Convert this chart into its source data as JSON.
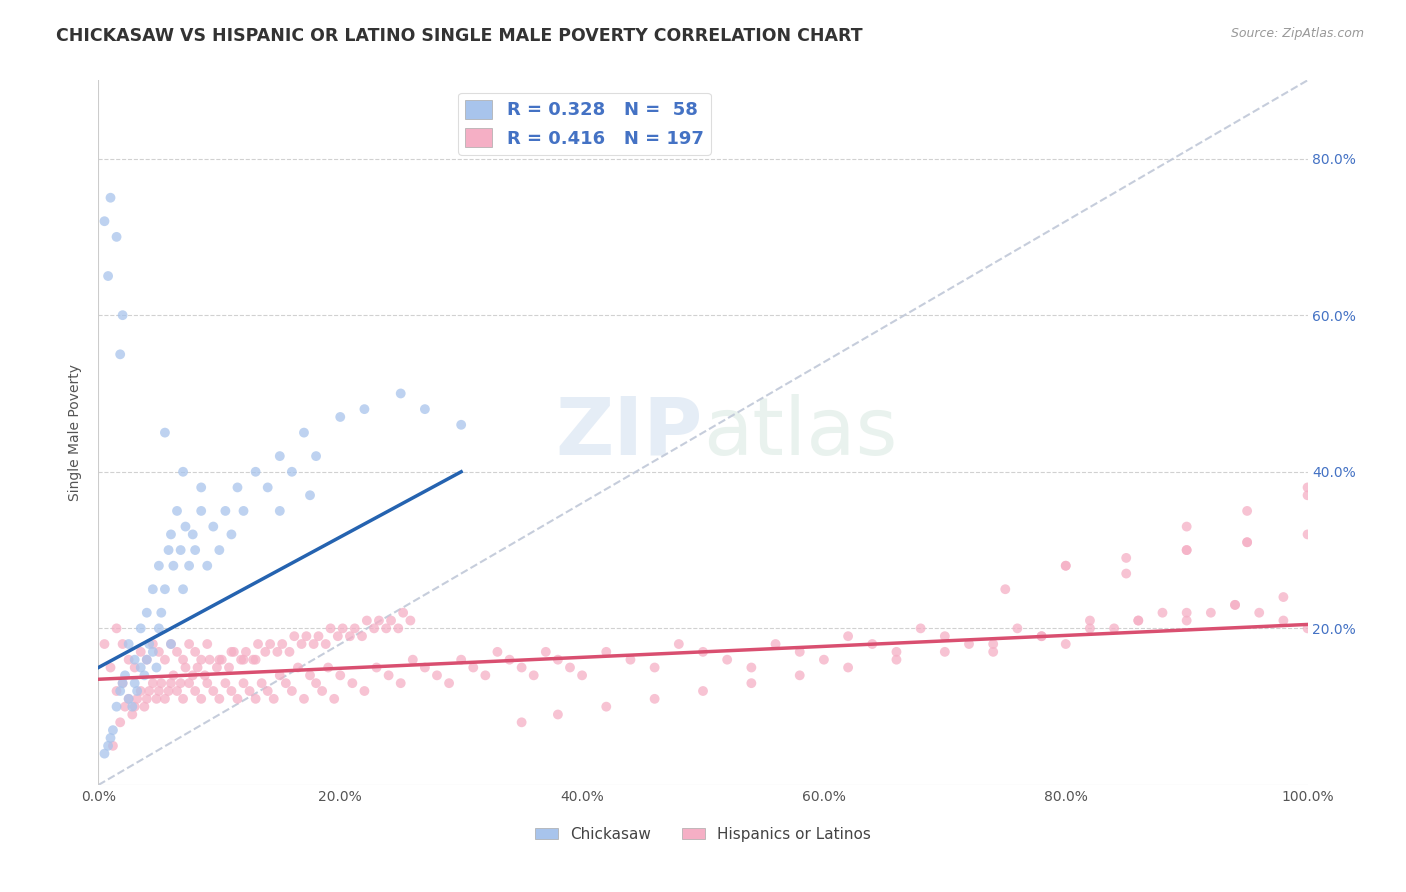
{
  "title": "CHICKASAW VS HISPANIC OR LATINO SINGLE MALE POVERTY CORRELATION CHART",
  "source": "Source: ZipAtlas.com",
  "ylabel": "Single Male Poverty",
  "xlim": [
    0.0,
    1.0
  ],
  "ylim": [
    0.0,
    0.9
  ],
  "xticks": [
    0.0,
    0.2,
    0.4,
    0.6,
    0.8,
    1.0
  ],
  "xtick_labels": [
    "0.0%",
    "20.0%",
    "40.0%",
    "60.0%",
    "80.0%",
    "100.0%"
  ],
  "yticks": [
    0.2,
    0.4,
    0.6,
    0.8
  ],
  "ytick_labels": [
    "20.0%",
    "40.0%",
    "60.0%",
    "80.0%"
  ],
  "chickasaw_R": 0.328,
  "chickasaw_N": 58,
  "hispanic_R": 0.416,
  "hispanic_N": 197,
  "chickasaw_color": "#a8c4ec",
  "hispanic_color": "#f5afc5",
  "chickasaw_line_color": "#2563b0",
  "hispanic_line_color": "#d94f70",
  "diagonal_color": "#c0c8d8",
  "watermark_zip": "ZIP",
  "watermark_atlas": "atlas",
  "background_color": "#ffffff",
  "title_fontsize": 12.5,
  "label_fontsize": 10,
  "tick_fontsize": 10,
  "legend_fontsize": 13,
  "chickasaw_scatter_x": [
    0.005,
    0.008,
    0.01,
    0.012,
    0.015,
    0.018,
    0.02,
    0.022,
    0.025,
    0.025,
    0.028,
    0.03,
    0.03,
    0.032,
    0.035,
    0.035,
    0.038,
    0.04,
    0.04,
    0.042,
    0.045,
    0.045,
    0.048,
    0.05,
    0.05,
    0.052,
    0.055,
    0.058,
    0.06,
    0.06,
    0.062,
    0.065,
    0.068,
    0.07,
    0.072,
    0.075,
    0.078,
    0.08,
    0.085,
    0.09,
    0.095,
    0.1,
    0.105,
    0.11,
    0.115,
    0.12,
    0.13,
    0.14,
    0.15,
    0.16,
    0.17,
    0.18,
    0.2,
    0.22,
    0.25,
    0.27,
    0.3,
    0.005
  ],
  "chickasaw_scatter_y": [
    0.04,
    0.05,
    0.06,
    0.07,
    0.1,
    0.12,
    0.13,
    0.14,
    0.11,
    0.18,
    0.1,
    0.13,
    0.16,
    0.12,
    0.15,
    0.2,
    0.14,
    0.16,
    0.22,
    0.18,
    0.17,
    0.25,
    0.15,
    0.2,
    0.28,
    0.22,
    0.25,
    0.3,
    0.18,
    0.32,
    0.28,
    0.35,
    0.3,
    0.25,
    0.33,
    0.28,
    0.32,
    0.3,
    0.35,
    0.28,
    0.33,
    0.3,
    0.35,
    0.32,
    0.38,
    0.35,
    0.4,
    0.38,
    0.42,
    0.4,
    0.45,
    0.42,
    0.47,
    0.48,
    0.5,
    0.48,
    0.46,
    0.72
  ],
  "chickasaw_scatter_x2": [
    0.01,
    0.015,
    0.018,
    0.02,
    0.008,
    0.055,
    0.07,
    0.085,
    0.15,
    0.175
  ],
  "chickasaw_scatter_y2": [
    0.75,
    0.7,
    0.55,
    0.6,
    0.65,
    0.45,
    0.4,
    0.38,
    0.35,
    0.37
  ],
  "hispanic_scatter_x": [
    0.005,
    0.01,
    0.015,
    0.015,
    0.02,
    0.02,
    0.025,
    0.025,
    0.03,
    0.03,
    0.035,
    0.035,
    0.04,
    0.04,
    0.045,
    0.045,
    0.05,
    0.05,
    0.055,
    0.055,
    0.06,
    0.06,
    0.065,
    0.065,
    0.07,
    0.07,
    0.075,
    0.075,
    0.08,
    0.08,
    0.085,
    0.085,
    0.09,
    0.09,
    0.095,
    0.1,
    0.1,
    0.105,
    0.11,
    0.11,
    0.115,
    0.12,
    0.12,
    0.125,
    0.13,
    0.13,
    0.135,
    0.14,
    0.145,
    0.15,
    0.155,
    0.16,
    0.165,
    0.17,
    0.175,
    0.18,
    0.185,
    0.19,
    0.195,
    0.2,
    0.21,
    0.22,
    0.23,
    0.24,
    0.25,
    0.26,
    0.27,
    0.28,
    0.29,
    0.3,
    0.31,
    0.32,
    0.33,
    0.34,
    0.35,
    0.36,
    0.37,
    0.38,
    0.39,
    0.4,
    0.42,
    0.44,
    0.46,
    0.48,
    0.5,
    0.52,
    0.54,
    0.56,
    0.58,
    0.6,
    0.62,
    0.64,
    0.66,
    0.68,
    0.7,
    0.72,
    0.74,
    0.76,
    0.78,
    0.8,
    0.82,
    0.84,
    0.86,
    0.88,
    0.9,
    0.92,
    0.94,
    0.96,
    0.98,
    1.0,
    0.012,
    0.018,
    0.022,
    0.028,
    0.032,
    0.038,
    0.042,
    0.048,
    0.052,
    0.058,
    0.062,
    0.068,
    0.072,
    0.078,
    0.082,
    0.088,
    0.092,
    0.098,
    0.102,
    0.108,
    0.112,
    0.118,
    0.122,
    0.128,
    0.132,
    0.138,
    0.142,
    0.148,
    0.152,
    0.158,
    0.162,
    0.168,
    0.172,
    0.178,
    0.182,
    0.188,
    0.192,
    0.198,
    0.202,
    0.208,
    0.212,
    0.218,
    0.222,
    0.228,
    0.232,
    0.238,
    0.242,
    0.248,
    0.252,
    0.258,
    0.35,
    0.38,
    0.42,
    0.46,
    0.5,
    0.54,
    0.58,
    0.62,
    0.66,
    0.7,
    0.74,
    0.78,
    0.82,
    0.86,
    0.9,
    0.94,
    0.98,
    0.75,
    0.8,
    0.85,
    0.9,
    0.95,
    1.0,
    0.8,
    0.85,
    0.9,
    0.95,
    1.0,
    0.9,
    0.95,
    1.0
  ],
  "hispanic_scatter_y": [
    0.18,
    0.15,
    0.12,
    0.2,
    0.13,
    0.18,
    0.11,
    0.16,
    0.1,
    0.15,
    0.12,
    0.17,
    0.11,
    0.16,
    0.13,
    0.18,
    0.12,
    0.17,
    0.11,
    0.16,
    0.13,
    0.18,
    0.12,
    0.17,
    0.11,
    0.16,
    0.13,
    0.18,
    0.12,
    0.17,
    0.11,
    0.16,
    0.13,
    0.18,
    0.12,
    0.11,
    0.16,
    0.13,
    0.12,
    0.17,
    0.11,
    0.13,
    0.16,
    0.12,
    0.11,
    0.16,
    0.13,
    0.12,
    0.11,
    0.14,
    0.13,
    0.12,
    0.15,
    0.11,
    0.14,
    0.13,
    0.12,
    0.15,
    0.11,
    0.14,
    0.13,
    0.12,
    0.15,
    0.14,
    0.13,
    0.16,
    0.15,
    0.14,
    0.13,
    0.16,
    0.15,
    0.14,
    0.17,
    0.16,
    0.15,
    0.14,
    0.17,
    0.16,
    0.15,
    0.14,
    0.17,
    0.16,
    0.15,
    0.18,
    0.17,
    0.16,
    0.15,
    0.18,
    0.17,
    0.16,
    0.19,
    0.18,
    0.17,
    0.2,
    0.19,
    0.18,
    0.17,
    0.2,
    0.19,
    0.18,
    0.21,
    0.2,
    0.21,
    0.22,
    0.21,
    0.22,
    0.23,
    0.22,
    0.21,
    0.2,
    0.05,
    0.08,
    0.1,
    0.09,
    0.11,
    0.1,
    0.12,
    0.11,
    0.13,
    0.12,
    0.14,
    0.13,
    0.15,
    0.14,
    0.15,
    0.14,
    0.16,
    0.15,
    0.16,
    0.15,
    0.17,
    0.16,
    0.17,
    0.16,
    0.18,
    0.17,
    0.18,
    0.17,
    0.18,
    0.17,
    0.19,
    0.18,
    0.19,
    0.18,
    0.19,
    0.18,
    0.2,
    0.19,
    0.2,
    0.19,
    0.2,
    0.19,
    0.21,
    0.2,
    0.21,
    0.2,
    0.21,
    0.2,
    0.22,
    0.21,
    0.08,
    0.09,
    0.1,
    0.11,
    0.12,
    0.13,
    0.14,
    0.15,
    0.16,
    0.17,
    0.18,
    0.19,
    0.2,
    0.21,
    0.22,
    0.23,
    0.24,
    0.25,
    0.28,
    0.27,
    0.3,
    0.31,
    0.38,
    0.28,
    0.29,
    0.3,
    0.31,
    0.32,
    0.33,
    0.35,
    0.37
  ],
  "chickasaw_line_x": [
    0.0,
    0.3
  ],
  "chickasaw_line_y": [
    0.15,
    0.4
  ],
  "hispanic_line_x": [
    0.0,
    1.0
  ],
  "hispanic_line_y": [
    0.135,
    0.205
  ],
  "diag_line_x": [
    0.0,
    1.0
  ],
  "diag_line_y": [
    0.0,
    0.9
  ]
}
